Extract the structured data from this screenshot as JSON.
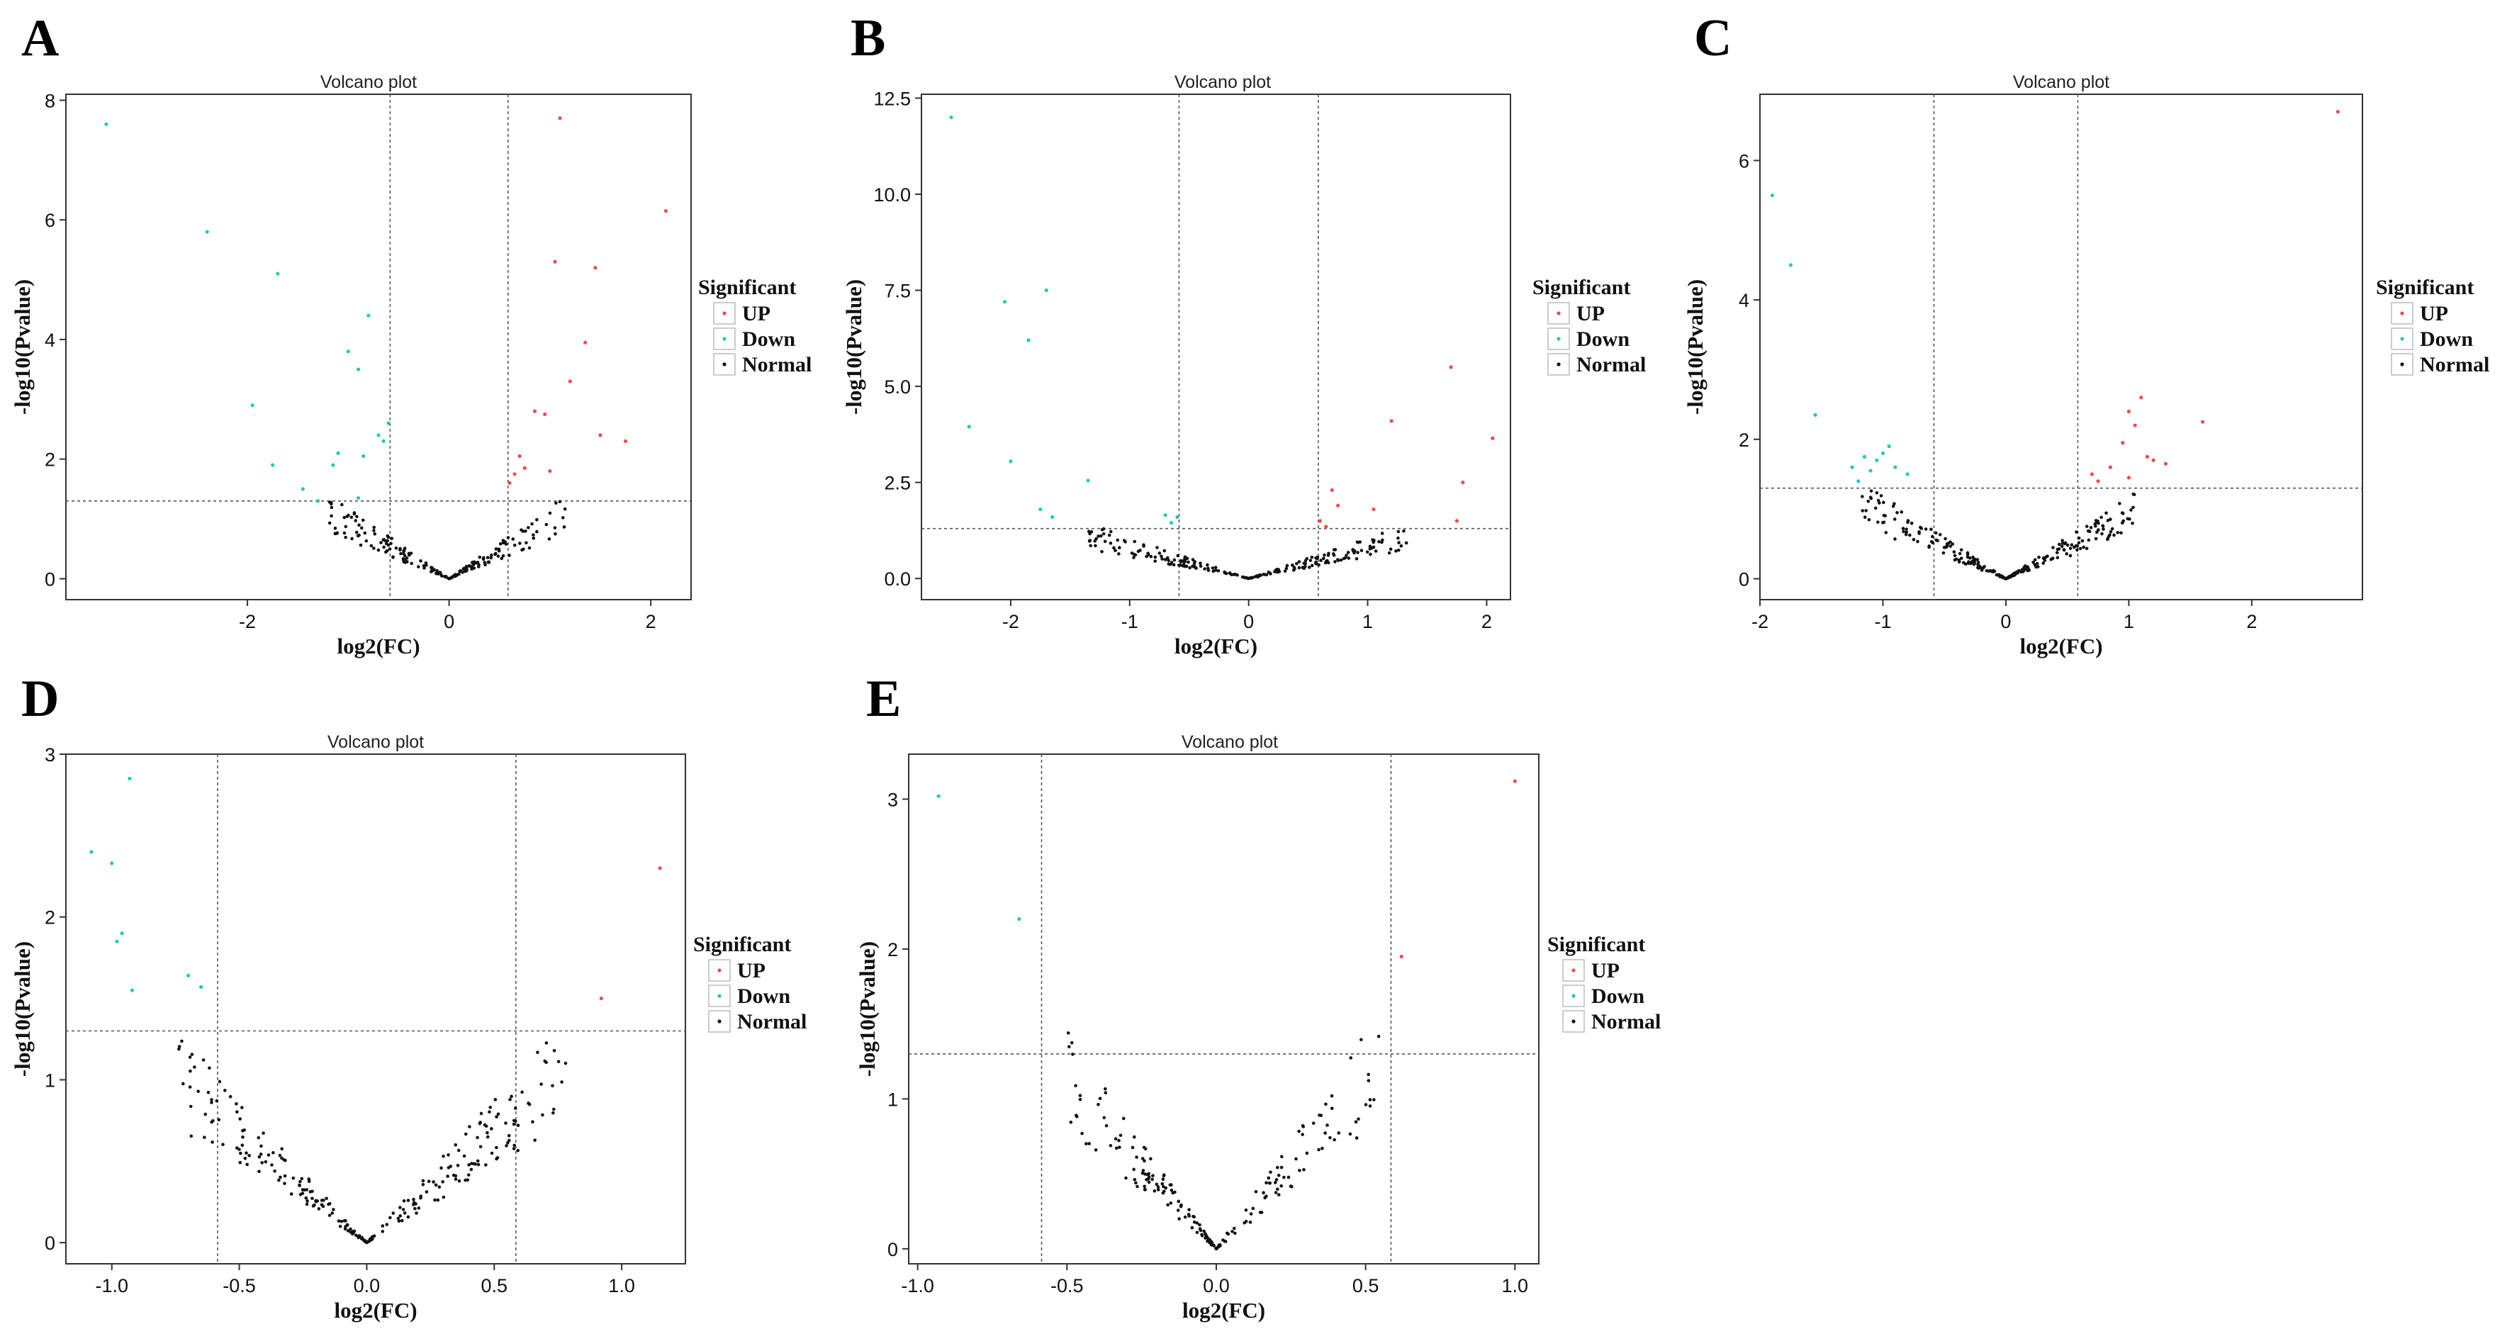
{
  "figure": {
    "background": "#ffffff",
    "colors": {
      "up": "#f04a4a",
      "down": "#22c9b4",
      "normal": "#111111",
      "frame": "#333333",
      "guide": "#555555"
    }
  },
  "chart_data": [
    {
      "panel_label": "A",
      "type": "scatter",
      "title": "Volcano plot",
      "xlabel": "log2(FC)",
      "ylabel": "-log10(Pvalue)",
      "xlim": [
        -3.8,
        2.4
      ],
      "ylim": [
        -0.35,
        8.1
      ],
      "xticks": [
        -2,
        0,
        2
      ],
      "xtick_labels": [
        "-2",
        "0",
        "2"
      ],
      "yticks": [
        0,
        2,
        4,
        6,
        8
      ],
      "ytick_labels": [
        "0",
        "2",
        "4",
        "6",
        "8"
      ],
      "thresholds": {
        "x": [
          -0.585,
          0.585
        ],
        "y": 1.3
      },
      "legend": {
        "title": "Significant",
        "items": [
          "UP",
          "Down",
          "Normal"
        ],
        "position": "right"
      },
      "series": [
        {
          "name": "UP",
          "points": [
            [
              1.1,
              7.7
            ],
            [
              2.15,
              6.15
            ],
            [
              1.05,
              5.3
            ],
            [
              1.45,
              5.2
            ],
            [
              1.35,
              3.95
            ],
            [
              1.2,
              3.3
            ],
            [
              0.85,
              2.8
            ],
            [
              0.95,
              2.75
            ],
            [
              1.5,
              2.4
            ],
            [
              1.75,
              2.3
            ],
            [
              0.7,
              2.05
            ],
            [
              0.75,
              1.85
            ],
            [
              0.65,
              1.75
            ],
            [
              1.0,
              1.8
            ],
            [
              0.6,
              1.6
            ]
          ]
        },
        {
          "name": "Down",
          "points": [
            [
              -3.4,
              7.6
            ],
            [
              -2.4,
              5.8
            ],
            [
              -1.7,
              5.1
            ],
            [
              -0.8,
              4.4
            ],
            [
              -1.0,
              3.8
            ],
            [
              -0.9,
              3.5
            ],
            [
              -1.95,
              2.9
            ],
            [
              -0.6,
              2.6
            ],
            [
              -0.7,
              2.4
            ],
            [
              -0.65,
              2.3
            ],
            [
              -1.1,
              2.1
            ],
            [
              -0.85,
              2.05
            ],
            [
              -1.15,
              1.9
            ],
            [
              -1.75,
              1.9
            ],
            [
              -1.45,
              1.5
            ],
            [
              -1.3,
              1.3
            ],
            [
              -0.9,
              1.35
            ]
          ]
        },
        {
          "name": "Normal",
          "generated": true,
          "count": 200,
          "xrange": [
            -1.2,
            1.15
          ],
          "ymax": 1.3
        }
      ]
    },
    {
      "panel_label": "B",
      "type": "scatter",
      "title": "Volcano plot",
      "xlabel": "log2(FC)",
      "ylabel": "-log10(Pvalue)",
      "xlim": [
        -2.75,
        2.2
      ],
      "ylim": [
        -0.55,
        12.6
      ],
      "xticks": [
        -2,
        -1,
        0,
        1,
        2
      ],
      "xtick_labels": [
        "-2",
        "-1",
        "0",
        "1",
        "2"
      ],
      "yticks": [
        0,
        2.5,
        5,
        7.5,
        10,
        12.5
      ],
      "ytick_labels": [
        "0.0",
        "2.5",
        "5.0",
        "7.5",
        "10.0",
        "12.5"
      ],
      "thresholds": {
        "x": [
          -0.585,
          0.585
        ],
        "y": 1.3
      },
      "legend": {
        "title": "Significant",
        "items": [
          "UP",
          "Down",
          "Normal"
        ],
        "position": "right"
      },
      "series": [
        {
          "name": "UP",
          "points": [
            [
              1.7,
              5.5
            ],
            [
              2.05,
              3.65
            ],
            [
              1.2,
              4.1
            ],
            [
              1.8,
              2.5
            ],
            [
              0.7,
              2.3
            ],
            [
              0.75,
              1.9
            ],
            [
              1.05,
              1.8
            ],
            [
              0.6,
              1.5
            ],
            [
              1.75,
              1.5
            ],
            [
              0.65,
              1.35
            ]
          ]
        },
        {
          "name": "Down",
          "points": [
            [
              -2.5,
              12.0
            ],
            [
              -1.7,
              7.5
            ],
            [
              -2.05,
              7.2
            ],
            [
              -1.85,
              6.2
            ],
            [
              -2.35,
              3.95
            ],
            [
              -2.0,
              3.05
            ],
            [
              -1.35,
              2.55
            ],
            [
              -1.75,
              1.8
            ],
            [
              -1.65,
              1.6
            ],
            [
              -0.7,
              1.65
            ],
            [
              -0.6,
              1.6
            ],
            [
              -0.65,
              1.45
            ]
          ]
        },
        {
          "name": "Normal",
          "generated": true,
          "count": 220,
          "xrange": [
            -1.35,
            1.35
          ],
          "ymax": 1.3
        }
      ]
    },
    {
      "panel_label": "C",
      "type": "scatter",
      "title": "Volcano plot",
      "xlabel": "log2(FC)",
      "ylabel": "-log10(Pvalue)",
      "xlim": [
        -2.0,
        2.9
      ],
      "ylim": [
        -0.3,
        6.95
      ],
      "xticks": [
        -2,
        -1,
        0,
        1,
        2
      ],
      "xtick_labels": [
        "-2",
        "-1",
        "0",
        "1",
        "2"
      ],
      "yticks": [
        0,
        2,
        4,
        6
      ],
      "ytick_labels": [
        "0",
        "2",
        "4",
        "6"
      ],
      "thresholds": {
        "x": [
          -0.585,
          0.585
        ],
        "y": 1.3
      },
      "legend": {
        "title": "Significant",
        "items": [
          "UP",
          "Down",
          "Normal"
        ],
        "position": "right"
      },
      "series": [
        {
          "name": "UP",
          "points": [
            [
              2.7,
              6.7
            ],
            [
              1.0,
              2.4
            ],
            [
              1.1,
              2.6
            ],
            [
              1.05,
              2.2
            ],
            [
              1.6,
              2.25
            ],
            [
              0.95,
              1.95
            ],
            [
              1.15,
              1.75
            ],
            [
              1.2,
              1.7
            ],
            [
              0.85,
              1.6
            ],
            [
              1.0,
              1.45
            ],
            [
              0.75,
              1.4
            ],
            [
              1.3,
              1.65
            ],
            [
              0.7,
              1.5
            ]
          ]
        },
        {
          "name": "Down",
          "points": [
            [
              -1.9,
              5.5
            ],
            [
              -1.75,
              4.5
            ],
            [
              -1.55,
              2.35
            ],
            [
              -1.25,
              1.6
            ],
            [
              -1.15,
              1.75
            ],
            [
              -1.0,
              1.8
            ],
            [
              -1.05,
              1.7
            ],
            [
              -0.95,
              1.9
            ],
            [
              -0.9,
              1.6
            ],
            [
              -1.1,
              1.55
            ],
            [
              -0.8,
              1.5
            ],
            [
              -1.2,
              1.4
            ]
          ]
        },
        {
          "name": "Normal",
          "generated": true,
          "count": 260,
          "xrange": [
            -1.2,
            1.05
          ],
          "ymax": 1.3
        }
      ]
    },
    {
      "panel_label": "D",
      "type": "scatter",
      "title": "Volcano plot",
      "xlabel": "log2(FC)",
      "ylabel": "-log10(Pvalue)",
      "xlim": [
        -1.18,
        1.25
      ],
      "ylim": [
        -0.13,
        3.0
      ],
      "xticks": [
        -1.0,
        -0.5,
        0.0,
        0.5,
        1.0
      ],
      "xtick_labels": [
        "-1.0",
        "-0.5",
        "0.0",
        "0.5",
        "1.0"
      ],
      "yticks": [
        0,
        1,
        2,
        3
      ],
      "ytick_labels": [
        "0",
        "1",
        "2",
        "3"
      ],
      "thresholds": {
        "x": [
          -0.585,
          0.585
        ],
        "y": 1.3
      },
      "legend": {
        "title": "Significant",
        "items": [
          "UP",
          "Down",
          "Normal"
        ],
        "position": "right"
      },
      "series": [
        {
          "name": "UP",
          "points": [
            [
              1.15,
              2.3
            ],
            [
              0.92,
              1.5
            ]
          ]
        },
        {
          "name": "Down",
          "points": [
            [
              -0.93,
              2.85
            ],
            [
              -1.08,
              2.4
            ],
            [
              -1.0,
              2.33
            ],
            [
              -0.96,
              1.9
            ],
            [
              -0.98,
              1.85
            ],
            [
              -0.92,
              1.55
            ],
            [
              -0.7,
              1.64
            ],
            [
              -0.65,
              1.57
            ]
          ]
        },
        {
          "name": "Normal",
          "generated": true,
          "count": 260,
          "xrange": [
            -0.75,
            0.78
          ],
          "ymax": 1.25
        }
      ]
    },
    {
      "panel_label": "E",
      "type": "scatter",
      "title": "Volcano plot",
      "xlabel": "log2(FC)",
      "ylabel": "-log10(Pvalue)",
      "xlim": [
        -1.03,
        1.08
      ],
      "ylim": [
        -0.1,
        3.3
      ],
      "xticks": [
        -1.0,
        -0.5,
        0.0,
        0.5,
        1.0
      ],
      "xtick_labels": [
        "-1.0",
        "-0.5",
        "0.0",
        "0.5",
        "1.0"
      ],
      "yticks": [
        0,
        1,
        2,
        3
      ],
      "ytick_labels": [
        "0",
        "1",
        "2",
        "3"
      ],
      "thresholds": {
        "x": [
          -0.585,
          0.585
        ],
        "y": 1.3
      },
      "legend": {
        "title": "Significant",
        "items": [
          "UP",
          "Down",
          "Normal"
        ],
        "position": "right"
      },
      "series": [
        {
          "name": "UP",
          "points": [
            [
              1.0,
              3.12
            ],
            [
              0.62,
              1.95
            ]
          ]
        },
        {
          "name": "Down",
          "points": [
            [
              -0.93,
              3.02
            ],
            [
              -0.66,
              2.2
            ]
          ]
        },
        {
          "name": "Normal",
          "generated": true,
          "count": 200,
          "xrange": [
            -0.5,
            0.55
          ],
          "ymax": 1.45
        }
      ]
    }
  ]
}
